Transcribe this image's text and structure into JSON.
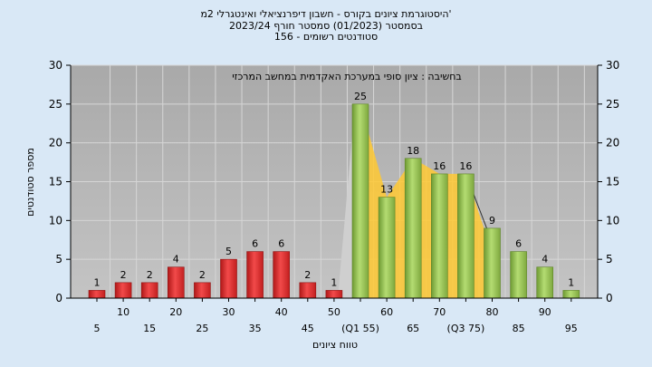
{
  "chart_data": {
    "type": "bar",
    "title_lines": [
      "היסטוגרמת ציונים בקורס - חשבון דיפרנציאלי ואינטגרלי 2מ'",
      "בסמסטר  (01/2023)  סמסטר חורף  2023/24",
      "סטודנטים רשומים - 156"
    ],
    "xlabel": "טווח ציונים",
    "ylabel": "מספר סטודנטים",
    "ylim": [
      0,
      30
    ],
    "yticks": [
      0,
      5,
      10,
      15,
      20,
      25,
      30
    ],
    "grid": true,
    "note": "בחשיבה : ציון סופי במערכת האקדמית במחשב המרכזי",
    "categories": [
      "5",
      "10",
      "15",
      "20",
      "25",
      "30",
      "35",
      "40",
      "45",
      "50",
      "55",
      "60",
      "65",
      "70",
      "75",
      "80",
      "85",
      "90",
      "95"
    ],
    "x_tick_labels": [
      "5",
      "10",
      "15",
      "20",
      "25",
      "30",
      "35",
      "40",
      "45",
      "50",
      "(Q1 55)",
      "60",
      "65",
      "70",
      "(Q3 75)",
      "80",
      "85",
      "90",
      "95"
    ],
    "values": [
      1,
      2,
      2,
      4,
      2,
      5,
      6,
      6,
      2,
      1,
      25,
      13,
      18,
      16,
      16,
      9,
      6,
      4,
      1
    ],
    "pass_threshold": 55,
    "colors": {
      "fail": "#dd2b2b",
      "pass": "#96c552",
      "band": "#ffc933",
      "background": "#b3b3b3",
      "page": "#d9e8f6"
    }
  }
}
